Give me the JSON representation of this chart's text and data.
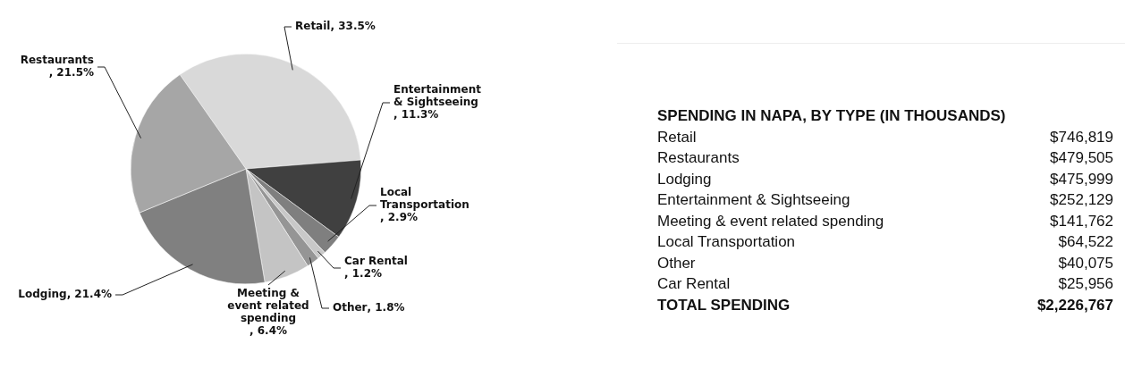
{
  "chart_data": [
    {
      "type": "pie",
      "categories": [
        "Retail",
        "Entertainment & Sightseeing",
        "Local Transportation",
        "Car Rental",
        "Other",
        "Meeting & event related spending",
        "Lodging",
        "Restaurants"
      ],
      "values": [
        33.5,
        11.3,
        2.9,
        1.2,
        1.8,
        6.4,
        21.4,
        21.5
      ],
      "colors": [
        "#d9d9d9",
        "#404040",
        "#7f7f7f",
        "#c8c8c8",
        "#959595",
        "#c4c4c4",
        "#808080",
        "#a6a6a6"
      ],
      "value_labels": [
        ", 33.5%",
        ", 11.3%",
        ", 2.9%",
        ", 1.2%",
        ", 1.8%",
        ", 6.4%",
        ", 21.4%",
        ", 21.5%"
      ]
    },
    {
      "type": "other",
      "title": "SPENDING IN NAPA, BY TYPE (IN THOUSANDS)",
      "categories": [
        "Retail",
        "Restaurants",
        "Lodging",
        "Entertainment & Sightseeing",
        "Meeting & event related spending",
        "Local Transportation",
        "Other",
        "Car Rental"
      ],
      "value_labels": [
        "$746,819",
        "$479,505",
        "$475,999",
        "$252,129",
        "$141,762",
        "$64,522",
        "$40,075",
        "$25,956"
      ],
      "annotations": [
        "TOTAL SPENDING"
      ],
      "totals": [
        "$2,226,767"
      ]
    }
  ]
}
